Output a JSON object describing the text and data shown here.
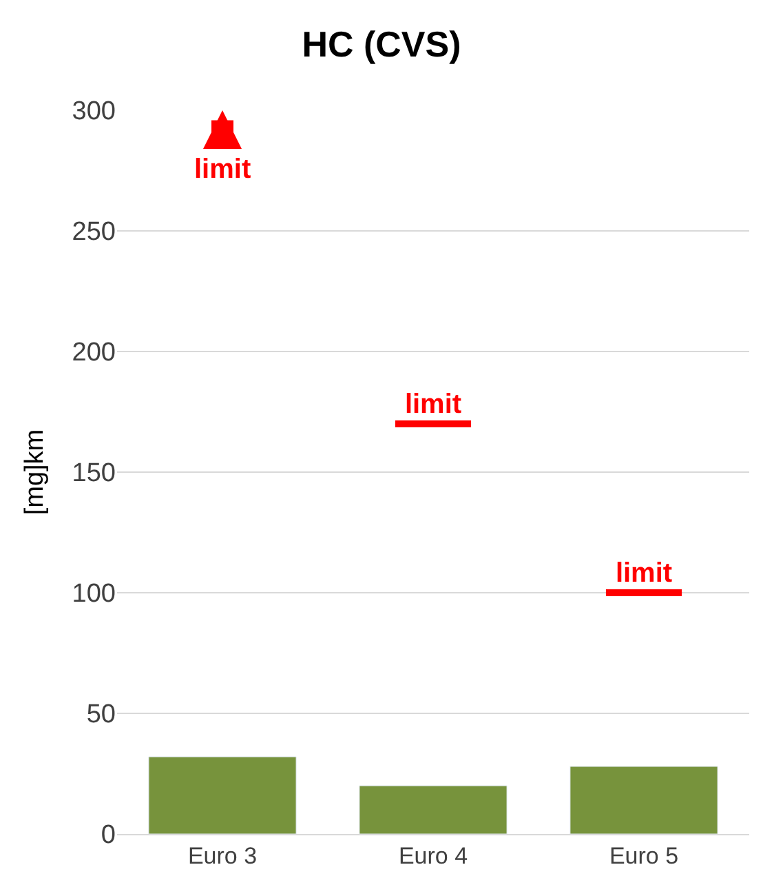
{
  "chart_data": {
    "type": "bar",
    "title": "HC (CVS)",
    "ylabel": "[mg]km",
    "categories": [
      "Euro 3",
      "Euro 4",
      "Euro 5"
    ],
    "values": [
      32,
      20,
      28
    ],
    "color": "#77933c",
    "ylim": [
      0,
      300
    ],
    "yticks": [
      0,
      50,
      100,
      150,
      200,
      250,
      300
    ],
    "grid": "y",
    "ref_lines": [
      {
        "axis": "y",
        "value": 170,
        "label": "limit",
        "color": "#ff0000"
      },
      {
        "axis": "y",
        "value": 100,
        "label": "limit",
        "color": "#ff0000"
      }
    ],
    "annotations": [
      "limit"
    ]
  }
}
